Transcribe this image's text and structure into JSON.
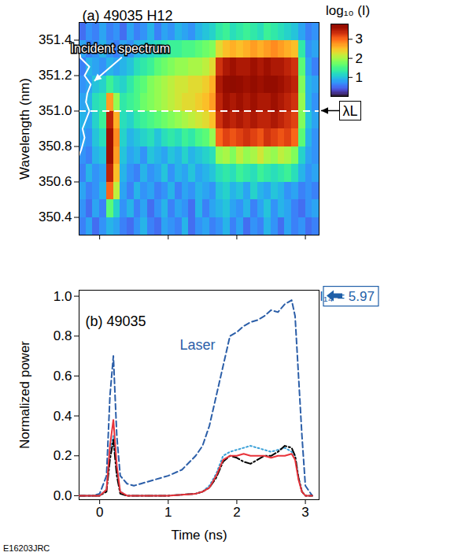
{
  "chart_data": [
    {
      "type": "heatmap",
      "title": "(a) 49035 H12",
      "ylabel": "Wavelength (nm)",
      "xlim": [
        -0.3,
        3.2
      ],
      "xticks": [
        0,
        1,
        2,
        3
      ],
      "tick_labels": "y",
      "ylim": [
        350.3,
        351.5
      ],
      "yticks": [
        350.4,
        350.6,
        350.8,
        {
          "value": 351.0,
          "label": "351.0"
        },
        351.2,
        351.4
      ],
      "color": "turbo",
      "time_bins": [
        -0.3,
        -0.2,
        -0.1,
        0.0,
        0.1,
        0.2,
        0.3,
        0.4,
        0.5,
        0.6,
        0.7,
        0.8,
        0.9,
        1.0,
        1.1,
        1.2,
        1.3,
        1.4,
        1.5,
        1.6,
        1.7,
        1.8,
        1.9,
        2.0,
        2.1,
        2.2,
        2.3,
        2.4,
        2.5,
        2.6,
        2.7,
        2.8,
        2.9,
        3.0,
        3.1,
        3.2
      ],
      "wavelength_bins": [
        350.3,
        350.4,
        350.5,
        350.6,
        350.7,
        350.8,
        350.9,
        351.0,
        351.1,
        351.2,
        351.3,
        351.4,
        351.5
      ],
      "values": [
        [
          0.6,
          0.8,
          0.5,
          0.7,
          0.9,
          0.8,
          0.6,
          0.5,
          0.7,
          0.9,
          0.6,
          0.5,
          0.8,
          0.7,
          0.6,
          0.9,
          0.5,
          0.7,
          0.8,
          0.6,
          0.7,
          0.9,
          0.6,
          0.8,
          0.5,
          0.7,
          0.6,
          0.9,
          0.7,
          0.5,
          0.8,
          0.6,
          0.7,
          0.5,
          0.6
        ],
        [
          0.7,
          0.5,
          0.8,
          0.6,
          1.6,
          1.1,
          0.7,
          0.9,
          0.6,
          0.8,
          0.5,
          0.7,
          0.9,
          0.6,
          0.8,
          0.7,
          0.5,
          0.9,
          0.6,
          0.8,
          0.9,
          1.0,
          0.8,
          0.7,
          0.9,
          0.6,
          0.8,
          1.0,
          0.7,
          0.9,
          0.8,
          0.6,
          0.5,
          0.7,
          0.8
        ],
        [
          0.8,
          0.6,
          0.7,
          0.9,
          3.0,
          2.1,
          0.8,
          0.6,
          0.9,
          0.7,
          0.8,
          0.6,
          0.7,
          0.9,
          0.6,
          0.8,
          0.7,
          0.9,
          0.8,
          0.7,
          1.0,
          1.1,
          0.9,
          1.0,
          0.8,
          1.1,
          0.9,
          0.8,
          1.0,
          0.9,
          0.7,
          0.8,
          0.6,
          0.7,
          0.6
        ],
        [
          0.6,
          0.9,
          0.7,
          0.8,
          3.4,
          2.5,
          0.9,
          0.7,
          0.6,
          0.9,
          0.7,
          0.8,
          1.0,
          0.7,
          0.9,
          0.8,
          1.0,
          0.8,
          0.9,
          1.0,
          1.2,
          1.3,
          1.2,
          1.4,
          1.3,
          1.2,
          1.4,
          1.3,
          1.2,
          1.3,
          1.4,
          1.2,
          0.9,
          0.7,
          0.8
        ],
        [
          0.7,
          0.6,
          0.9,
          1.0,
          3.6,
          2.7,
          1.0,
          0.8,
          0.9,
          0.7,
          1.0,
          0.9,
          0.8,
          1.0,
          0.9,
          1.1,
          0.9,
          1.0,
          1.1,
          1.2,
          1.9,
          2.0,
          1.8,
          2.1,
          1.9,
          2.0,
          2.2,
          2.0,
          1.9,
          2.1,
          2.0,
          1.8,
          1.1,
          0.8,
          0.7
        ],
        [
          0.8,
          0.7,
          1.0,
          1.2,
          3.6,
          2.8,
          1.1,
          0.9,
          1.0,
          1.1,
          1.2,
          1.0,
          1.2,
          1.3,
          1.2,
          1.4,
          1.3,
          1.5,
          1.6,
          1.9,
          3.0,
          3.2,
          3.1,
          3.2,
          3.3,
          3.2,
          3.1,
          3.3,
          3.2,
          3.1,
          3.2,
          3.0,
          1.6,
          0.9,
          0.7
        ],
        [
          0.9,
          0.8,
          1.1,
          1.4,
          3.4,
          2.6,
          1.2,
          1.1,
          1.3,
          1.4,
          1.5,
          1.6,
          1.7,
          1.8,
          1.9,
          2.0,
          2.1,
          2.2,
          2.3,
          2.5,
          3.3,
          3.5,
          3.4,
          3.5,
          3.4,
          3.5,
          3.4,
          3.4,
          3.5,
          3.4,
          3.3,
          3.2,
          1.8,
          1.0,
          0.8
        ],
        [
          0.8,
          0.9,
          1.2,
          1.3,
          2.7,
          1.9,
          1.3,
          1.4,
          1.5,
          1.7,
          1.8,
          1.9,
          2.0,
          2.1,
          2.2,
          2.3,
          2.3,
          2.4,
          2.5,
          2.7,
          3.4,
          3.6,
          3.5,
          3.6,
          3.5,
          3.6,
          3.5,
          3.5,
          3.6,
          3.5,
          3.4,
          3.3,
          1.9,
          0.9,
          0.7
        ],
        [
          0.7,
          0.8,
          1.0,
          1.1,
          1.4,
          1.2,
          1.1,
          1.3,
          1.5,
          1.6,
          1.8,
          1.9,
          2.0,
          2.1,
          2.2,
          2.2,
          2.3,
          2.3,
          2.4,
          2.6,
          3.5,
          3.7,
          3.8,
          3.7,
          3.6,
          3.7,
          3.6,
          3.7,
          3.7,
          3.6,
          3.5,
          3.4,
          1.8,
          0.9,
          0.8
        ],
        [
          0.6,
          0.9,
          0.8,
          0.7,
          0.9,
          0.8,
          0.9,
          1.0,
          1.2,
          1.3,
          1.4,
          1.6,
          1.7,
          1.8,
          1.9,
          1.9,
          2.0,
          2.0,
          2.1,
          2.3,
          3.3,
          3.5,
          3.6,
          3.5,
          3.5,
          3.6,
          3.5,
          3.6,
          3.5,
          3.5,
          3.4,
          3.3,
          1.6,
          0.8,
          0.6
        ],
        [
          0.8,
          0.6,
          0.7,
          0.9,
          0.7,
          0.6,
          0.8,
          0.7,
          0.9,
          1.0,
          1.1,
          1.2,
          1.3,
          1.4,
          1.4,
          1.5,
          1.5,
          1.6,
          1.7,
          1.8,
          2.3,
          2.5,
          2.6,
          2.5,
          2.6,
          2.7,
          2.6,
          2.7,
          2.8,
          2.7,
          2.6,
          2.5,
          1.3,
          0.7,
          0.8
        ],
        [
          0.5,
          0.7,
          0.6,
          0.8,
          0.6,
          0.7,
          0.5,
          0.8,
          0.6,
          0.7,
          0.9,
          0.6,
          0.8,
          0.7,
          0.9,
          0.8,
          0.7,
          0.9,
          1.0,
          1.1,
          1.3,
          1.4,
          1.2,
          1.3,
          1.4,
          1.3,
          1.2,
          1.4,
          1.3,
          1.2,
          1.1,
          1.0,
          0.8,
          0.6,
          0.7
        ]
      ],
      "colorbar": {
        "label": "log₁₀ (I)",
        "range": [
          0,
          3.8
        ],
        "ticks": [
          1,
          2,
          3
        ]
      },
      "incident_spectrum": {
        "label": "Incident spectrum",
        "x": [
          -0.3,
          -0.27,
          -0.22,
          -0.25,
          -0.2,
          -0.15,
          -0.2,
          -0.18,
          -0.13,
          -0.22,
          -0.15,
          -0.28,
          -0.3
        ],
        "y": [
          350.75,
          350.78,
          350.85,
          350.9,
          350.95,
          351.0,
          351.05,
          351.1,
          351.15,
          351.2,
          351.25,
          351.3,
          351.35
        ]
      },
      "reference_line": {
        "value": 351.0,
        "label": "λL"
      }
    },
    {
      "type": "line",
      "title": "(b) 49035",
      "xlabel": "Time (ns)",
      "ylabel": "Normalized power",
      "xlim": [
        -0.3,
        3.2
      ],
      "xticks": [
        0,
        1,
        2,
        3
      ],
      "ylim": [
        -0.02,
        1.03
      ],
      "yticks": [
        {
          "value": 0,
          "label": "0.0"
        },
        0.2,
        0.4,
        0.6,
        0.8,
        {
          "value": 1,
          "label": "1.0"
        }
      ],
      "x": [
        -0.3,
        -0.1,
        0.0,
        0.1,
        0.15,
        0.2,
        0.25,
        0.3,
        0.4,
        0.5,
        0.6,
        0.8,
        1.0,
        1.2,
        1.4,
        1.5,
        1.6,
        1.7,
        1.8,
        1.9,
        2.0,
        2.1,
        2.2,
        2.3,
        2.4,
        2.5,
        2.6,
        2.7,
        2.8,
        2.85,
        2.9,
        2.95,
        3.0,
        3.1
      ],
      "series": [
        {
          "name": "Laser",
          "color": "#2b5ea8",
          "line_style": "dashed",
          "values": [
            0,
            0,
            0.01,
            0.1,
            0.5,
            0.7,
            0.3,
            0.1,
            0.06,
            0.05,
            0.06,
            0.08,
            0.1,
            0.13,
            0.2,
            0.25,
            0.35,
            0.5,
            0.65,
            0.8,
            0.82,
            0.85,
            0.87,
            0.88,
            0.9,
            0.93,
            0.92,
            0.96,
            0.98,
            0.9,
            0.6,
            0.3,
            0.05,
            0
          ]
        },
        {
          "color": "#3aa0d8",
          "line_style": "dotted",
          "values": [
            0,
            0,
            0,
            0.03,
            0.22,
            0.3,
            0.12,
            0.02,
            0,
            0,
            0,
            0,
            0,
            0.005,
            0.01,
            0.02,
            0.05,
            0.11,
            0.2,
            0.22,
            0.23,
            0.24,
            0.25,
            0.24,
            0.23,
            0.22,
            0.23,
            0.24,
            0.22,
            0.2,
            0.09,
            0.02,
            0,
            0
          ]
        },
        {
          "color": "#000000",
          "line_style": "dashdot",
          "values": [
            0,
            0,
            0,
            0.02,
            0.18,
            0.28,
            0.1,
            0.01,
            0,
            0,
            0,
            0,
            0,
            0.005,
            0.01,
            0.02,
            0.04,
            0.09,
            0.17,
            0.2,
            0.19,
            0.17,
            0.16,
            0.18,
            0.2,
            0.2,
            0.22,
            0.25,
            0.24,
            0.2,
            0.09,
            0.02,
            0,
            0
          ]
        },
        {
          "color": "#e8333a",
          "line_style": "solid",
          "values": [
            0,
            0,
            0,
            0.03,
            0.25,
            0.38,
            0.15,
            0.02,
            0,
            0,
            0,
            0,
            0,
            0.005,
            0.01,
            0.02,
            0.04,
            0.1,
            0.18,
            0.2,
            0.2,
            0.21,
            0.2,
            0.2,
            0.2,
            0.19,
            0.2,
            0.2,
            0.21,
            0.18,
            0.08,
            0.02,
            0,
            0
          ]
        }
      ],
      "annotation": {
        "text": "I₁₄ = 5.97",
        "color": "#1f5fa8"
      }
    }
  ],
  "caption": "E16203JRC"
}
